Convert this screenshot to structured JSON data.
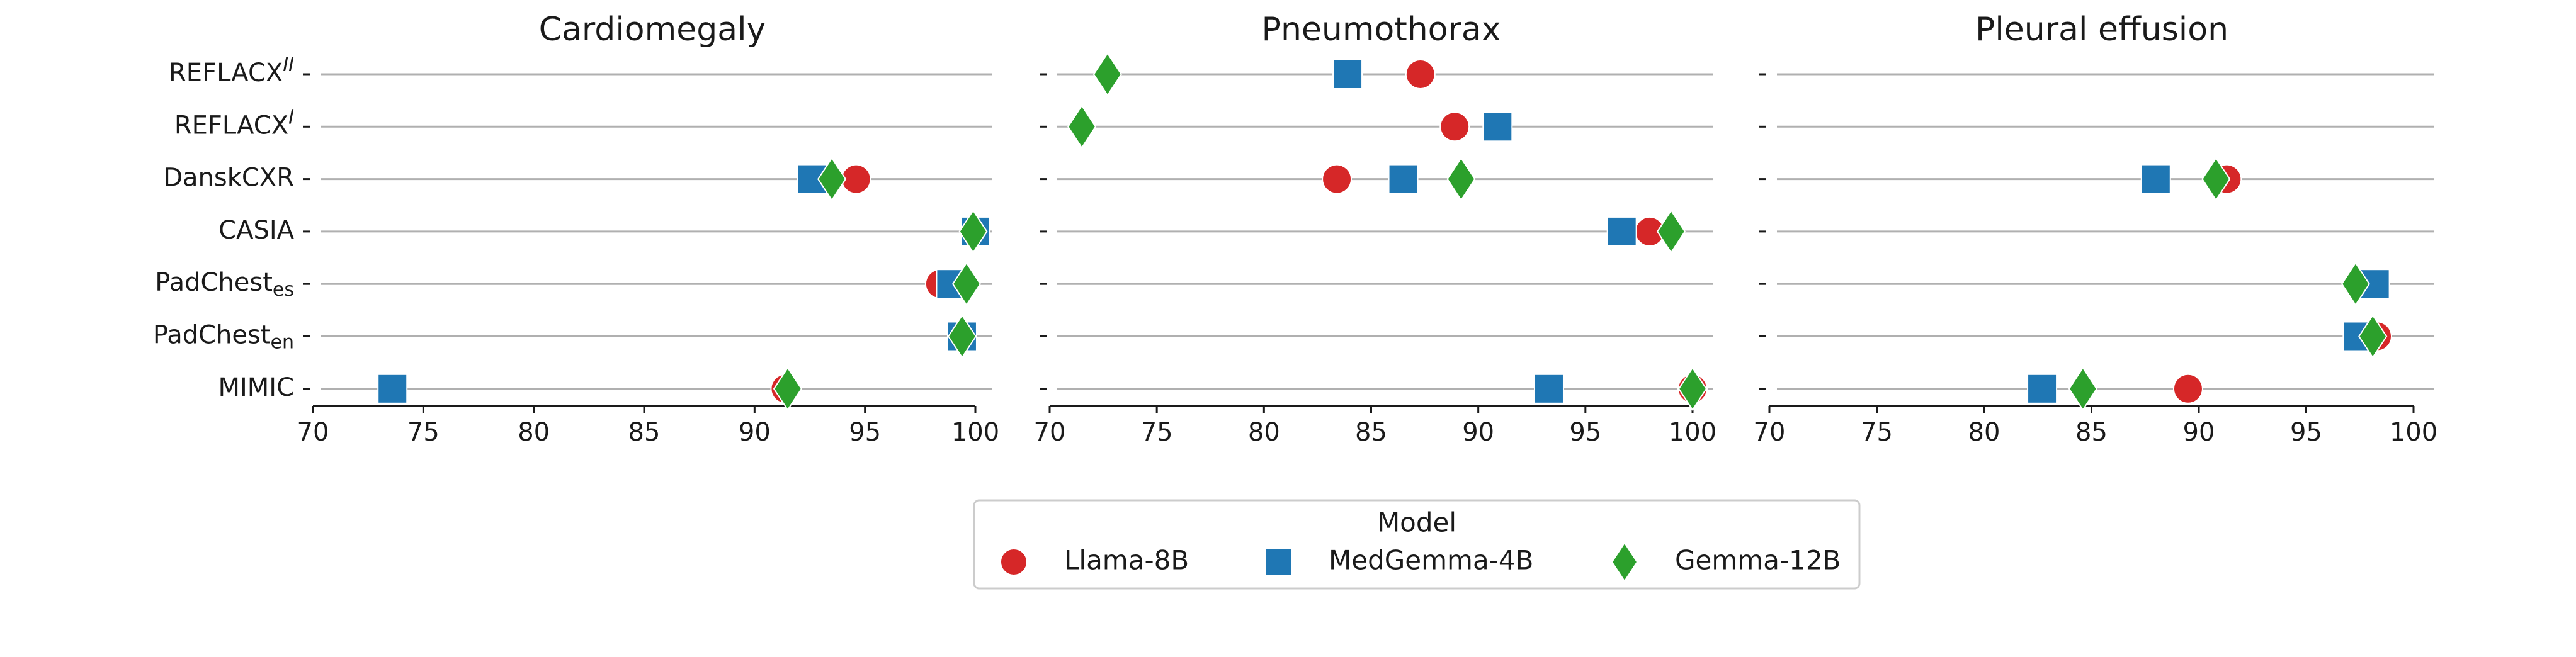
{
  "chart_data": [
    {
      "type": "scatter",
      "title": "Cardiomegaly",
      "xlim": [
        70,
        102
      ],
      "xticks": [
        "70",
        "75",
        "80",
        "85",
        "90",
        "95",
        "100"
      ],
      "categories": [
        "REFLACX^II",
        "REFLACX^I",
        "DanskCXR",
        "CASIA",
        "PadChest_es",
        "PadChest_en",
        "MIMIC"
      ],
      "series": [
        {
          "name": "Llama-8B",
          "values": [
            null,
            null,
            94.6,
            100.0,
            98.4,
            99.4,
            91.4
          ]
        },
        {
          "name": "MedGemma-4B",
          "values": [
            null,
            null,
            92.6,
            100.0,
            98.9,
            99.4,
            73.6
          ]
        },
        {
          "name": "Gemma-12B",
          "values": [
            null,
            null,
            93.5,
            99.9,
            99.6,
            99.4,
            91.5
          ]
        }
      ]
    },
    {
      "type": "scatter",
      "title": "Pneumothorax",
      "xlim": [
        70,
        102
      ],
      "xticks": [
        "70",
        "75",
        "80",
        "85",
        "90",
        "95",
        "100"
      ],
      "categories": [
        "REFLACX^II",
        "REFLACX^I",
        "DanskCXR",
        "CASIA",
        "PadChest_es",
        "PadChest_en",
        "MIMIC"
      ],
      "series": [
        {
          "name": "Llama-8B",
          "values": [
            87.3,
            88.9,
            83.4,
            98.0,
            null,
            null,
            100.0
          ]
        },
        {
          "name": "MedGemma-4B",
          "values": [
            83.9,
            90.9,
            86.5,
            96.7,
            null,
            null,
            93.3
          ]
        },
        {
          "name": "Gemma-12B",
          "values": [
            72.7,
            71.5,
            89.2,
            99.0,
            null,
            null,
            100.0
          ]
        }
      ]
    },
    {
      "type": "scatter",
      "title": "Pleural effusion",
      "xlim": [
        70,
        102
      ],
      "xticks": [
        "70",
        "75",
        "80",
        "85",
        "90",
        "95",
        "100"
      ],
      "categories": [
        "REFLACX^II",
        "REFLACX^I",
        "DanskCXR",
        "CASIA",
        "PadChest_es",
        "PadChest_en",
        "MIMIC"
      ],
      "series": [
        {
          "name": "Llama-8B",
          "values": [
            null,
            null,
            91.3,
            null,
            97.4,
            98.3,
            89.5
          ]
        },
        {
          "name": "MedGemma-4B",
          "values": [
            null,
            null,
            88.0,
            null,
            98.2,
            97.4,
            82.7
          ]
        },
        {
          "name": "Gemma-12B",
          "values": [
            null,
            null,
            90.8,
            null,
            97.3,
            98.1,
            84.6
          ]
        }
      ]
    }
  ],
  "y_labels": [
    {
      "base": "REFLACX",
      "sup": "II",
      "sub": ""
    },
    {
      "base": "REFLACX",
      "sup": "I",
      "sub": ""
    },
    {
      "base": "DanskCXR",
      "sup": "",
      "sub": ""
    },
    {
      "base": "CASIA",
      "sup": "",
      "sub": ""
    },
    {
      "base": "PadChest",
      "sup": "",
      "sub": "es"
    },
    {
      "base": "PadChest",
      "sup": "",
      "sub": "en"
    },
    {
      "base": "MIMIC",
      "sup": "",
      "sub": ""
    }
  ],
  "legend": {
    "title": "Model",
    "placement": "bottom-center",
    "items": [
      {
        "label": "Llama-8B",
        "marker": "circle",
        "color": "#d62728"
      },
      {
        "label": "MedGemma-4B",
        "marker": "square",
        "color": "#1f77b4"
      },
      {
        "label": "Gemma-12B",
        "marker": "diamond",
        "color": "#2ca02c"
      }
    ]
  },
  "style": {
    "gridline_color": "#b0b0b0",
    "axis_color": "#1a1a1a"
  }
}
